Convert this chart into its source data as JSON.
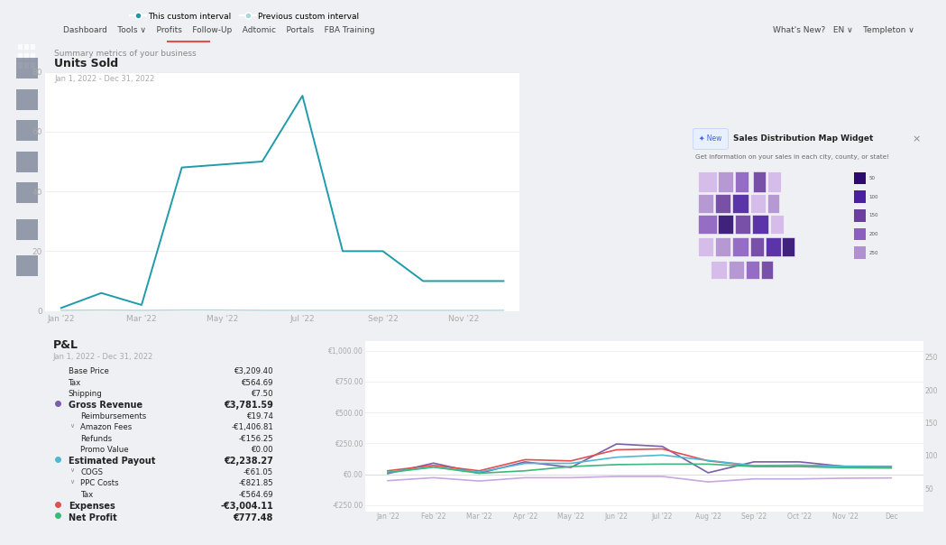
{
  "bg_color": "#eef0f3",
  "panel_color": "#ffffff",
  "sidebar_color": "#1c2333",
  "top_chart": {
    "title": "Units Sold",
    "subtitle": "Jan 1, 2022 - Dec 31, 2022",
    "legend": [
      "This custom interval",
      "Previous custom interval"
    ],
    "legend_colors": [
      "#1f9bab",
      "#a8d8dc"
    ],
    "x_tick_pos": [
      0,
      2,
      4,
      6,
      8,
      10
    ],
    "x_labels": [
      "Jan '22",
      "Mar '22",
      "May '22",
      "Jul '22",
      "Sep '22",
      "Nov '22"
    ],
    "this_interval": [
      1,
      6,
      2,
      48,
      49,
      50,
      72,
      20,
      20,
      10,
      10,
      10
    ],
    "prev_interval": [
      0.2,
      0.3,
      0.2,
      0.3,
      0.3,
      0.2,
      0.2,
      0.2,
      0.2,
      0.2,
      0.2,
      0.2
    ],
    "ylim": [
      0,
      80
    ],
    "yticks": [
      0,
      20,
      40,
      60,
      80
    ]
  },
  "bottom_chart": {
    "title": "P&L",
    "subtitle": "Jan 1, 2022 - Dec 31, 2022",
    "x_labels": [
      "Jan '22",
      "Feb '22",
      "Mar '22",
      "Apr '22",
      "May '22",
      "Jun '22",
      "Jul '22",
      "Aug '22",
      "Sep '22",
      "Oct '22",
      "Nov '22",
      "Dec"
    ],
    "left_ytick_labels": [
      "-€250.00",
      "€0.00",
      "€250.00",
      "€500.00",
      "€750.00",
      "€1,000.00"
    ],
    "left_yvals": [
      -250,
      0,
      250,
      500,
      750,
      1000
    ],
    "right_ytick_labels": [
      "50",
      "100",
      "150",
      "200",
      "250"
    ],
    "right_yvals": [
      50,
      100,
      150,
      200,
      250
    ],
    "ylim_left": [
      -300,
      1080
    ],
    "ylim_right": [
      15,
      275
    ],
    "lines": {
      "purple": {
        "color": "#7b5ea7",
        "values": [
          5,
          90,
          8,
          100,
          55,
          245,
          225,
          12,
          100,
          100,
          62,
          58
        ]
      },
      "red": {
        "color": "#e05050",
        "values": [
          28,
          72,
          28,
          118,
          108,
          198,
          205,
          108,
          68,
          72,
          65,
          64
        ]
      },
      "cyan": {
        "color": "#4db8d4",
        "values": [
          18,
          58,
          18,
          88,
          88,
          138,
          155,
          112,
          70,
          74,
          64,
          62
        ]
      },
      "green": {
        "color": "#3db87a",
        "values": [
          12,
          58,
          8,
          28,
          62,
          78,
          82,
          82,
          62,
          62,
          52,
          50
        ]
      },
      "light_purple": {
        "color": "#c8a8e0",
        "values": [
          -52,
          -28,
          -55,
          -28,
          -28,
          -18,
          -18,
          -62,
          -38,
          -38,
          -32,
          -30
        ]
      }
    },
    "table": {
      "rows": [
        [
          "Base Price",
          "€3,209.40",
          false,
          null
        ],
        [
          "Tax",
          "€564.69",
          false,
          null
        ],
        [
          "Shipping",
          "€7.50",
          false,
          null
        ],
        [
          "Gross Revenue",
          "€3,781.59",
          true,
          "#7b5ea7"
        ],
        [
          "Reimbursements",
          "€19.74",
          false,
          null
        ],
        [
          "Amazon Fees",
          "-€1,406.81",
          false,
          null
        ],
        [
          "Refunds",
          "-€156.25",
          false,
          null
        ],
        [
          "Promo Value",
          "€0.00",
          false,
          null
        ],
        [
          "Estimated Payout",
          "€2,238.27",
          true,
          "#4db8d4"
        ],
        [
          "COGS",
          "-€61.05",
          false,
          null
        ],
        [
          "PPC Costs",
          "-€821.85",
          false,
          null
        ],
        [
          "Tax",
          "-€564.69",
          false,
          null
        ],
        [
          "Expenses",
          "-€3,004.11",
          true,
          "#e05050"
        ],
        [
          "Net Profit",
          "€777.48",
          true,
          "#3db87a"
        ]
      ]
    }
  },
  "map_widget": {
    "title": "Sales Distribution Map Widget",
    "subtitle": "Get information on your sales in each city, county, or state!",
    "new_label": "New"
  }
}
